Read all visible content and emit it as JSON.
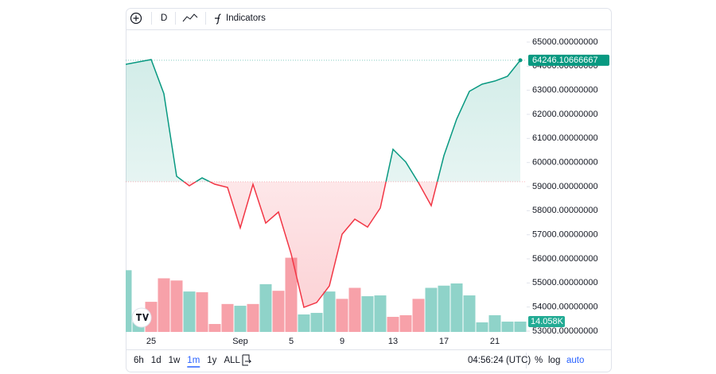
{
  "toolbar": {
    "interval": "D",
    "indicators": "Indicators"
  },
  "chart_data": {
    "type": "baseline",
    "categories": [
      null,
      null,
      "25",
      null,
      null,
      null,
      null,
      null,
      null,
      "Sep",
      null,
      null,
      null,
      "5",
      null,
      null,
      null,
      "9",
      null,
      null,
      null,
      "13",
      null,
      null,
      null,
      "17",
      null,
      null,
      null,
      "21",
      null,
      null
    ],
    "series": [
      {
        "values": [
          64077,
          64176,
          64275,
          62858,
          59428,
          59033,
          59362,
          59098,
          58967,
          57286,
          59098,
          57484,
          57945,
          56200,
          53988,
          54186,
          54878,
          57022,
          57648,
          57319,
          58110,
          60549,
          60022,
          59164,
          58209,
          60285,
          61802,
          62956,
          63253,
          63384,
          63582,
          64246.10666667
        ],
        "last_label": "64246.10666667"
      }
    ],
    "baseline": 59200,
    "up_color": "#089981",
    "down_color": "#f23645",
    "ylim": [
      53000,
      65000
    ],
    "yticks": [
      {
        "value": 65000,
        "label": "65000.00000000"
      },
      {
        "value": 64000,
        "label": "64000.00000000"
      },
      {
        "value": 63000,
        "label": "63000.00000000"
      },
      {
        "value": 62000,
        "label": "62000.00000000"
      },
      {
        "value": 61000,
        "label": "61000.00000000"
      },
      {
        "value": 60000,
        "label": "60000.00000000"
      },
      {
        "value": 59000,
        "label": "59000.00000000"
      },
      {
        "value": 58000,
        "label": "58000.00000000"
      },
      {
        "value": 57000,
        "label": "57000.00000000"
      },
      {
        "value": 56000,
        "label": "56000.00000000"
      },
      {
        "value": 55000,
        "label": "55000.00000000"
      },
      {
        "value": 54000,
        "label": "54000.00000000"
      },
      {
        "value": 53000,
        "label": "53000.00000000"
      }
    ],
    "volume": {
      "values": [
        84,
        21.6,
        41,
        73,
        70,
        55,
        54,
        10.8,
        38,
        35.6,
        38,
        65,
        56,
        101,
        23.8,
        25.9,
        55,
        45,
        60,
        48.6,
        49.7,
        20.5,
        22.7,
        45,
        60,
        63,
        66,
        49.7,
        13,
        22.7,
        14,
        14.058
      ],
      "colors": [
        "#8fd3c9",
        "#8fd3c9",
        "#f7a1a9",
        "#f7a1a9",
        "#f7a1a9",
        "#8fd3c9",
        "#f7a1a9",
        "#f7a1a9",
        "#f7a1a9",
        "#8fd3c9",
        "#f7a1a9",
        "#8fd3c9",
        "#f7a1a9",
        "#f7a1a9",
        "#8fd3c9",
        "#8fd3c9",
        "#8fd3c9",
        "#f7a1a9",
        "#f7a1a9",
        "#8fd3c9",
        "#8fd3c9",
        "#f7a1a9",
        "#f7a1a9",
        "#f7a1a9",
        "#8fd3c9",
        "#8fd3c9",
        "#8fd3c9",
        "#8fd3c9",
        "#8fd3c9",
        "#8fd3c9",
        "#8fd3c9",
        "#8fd3c9"
      ],
      "ylim": [
        0,
        120
      ],
      "last_label": "14.058K"
    }
  },
  "bottom_bar": {
    "ranges": [
      {
        "label": "6h",
        "active": false
      },
      {
        "label": "1d",
        "active": false
      },
      {
        "label": "1w",
        "active": false
      },
      {
        "label": "1m",
        "active": true
      },
      {
        "label": "1y",
        "active": false
      },
      {
        "label": "ALL",
        "active": false
      }
    ],
    "time": "04:56:24 (UTC)",
    "percent": "%",
    "log": "log",
    "auto": "auto"
  }
}
